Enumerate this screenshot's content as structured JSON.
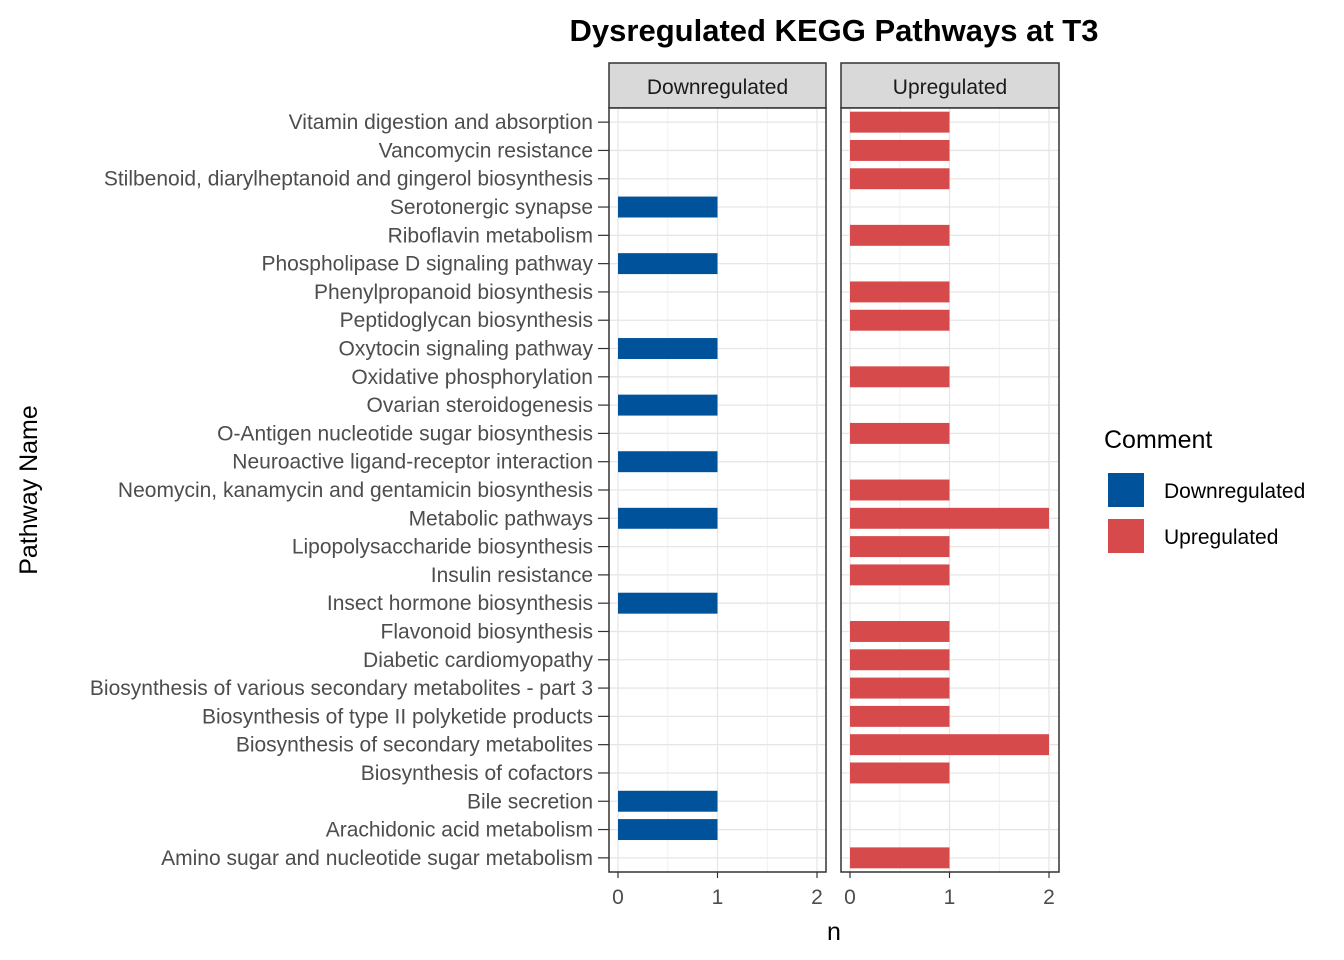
{
  "chart_data": {
    "type": "bar",
    "orientation": "horizontal",
    "title": "Dysregulated KEGG Pathways at T3",
    "xlabel": "n",
    "ylabel": "Pathway Name",
    "xlim": [
      0,
      2
    ],
    "xticks": [
      0,
      1,
      2
    ],
    "grid": true,
    "legend": {
      "title": "Comment",
      "position": "right",
      "entries": [
        "Downregulated",
        "Upregulated"
      ]
    },
    "colors": {
      "Downregulated": "#00539a",
      "Upregulated": "#d64a4b"
    },
    "categories": [
      "Vitamin digestion and absorption",
      "Vancomycin resistance",
      "Stilbenoid, diarylheptanoid and gingerol biosynthesis",
      "Serotonergic synapse",
      "Riboflavin metabolism",
      "Phospholipase D signaling pathway",
      "Phenylpropanoid biosynthesis",
      "Peptidoglycan biosynthesis",
      "Oxytocin signaling pathway",
      "Oxidative phosphorylation",
      "Ovarian steroidogenesis",
      "O-Antigen nucleotide sugar biosynthesis",
      "Neuroactive ligand-receptor interaction",
      "Neomycin, kanamycin and gentamicin biosynthesis",
      "Metabolic pathways",
      "Lipopolysaccharide biosynthesis",
      "Insulin resistance",
      "Insect hormone biosynthesis",
      "Flavonoid biosynthesis",
      "Diabetic cardiomyopathy",
      "Biosynthesis of various secondary metabolites - part 3",
      "Biosynthesis of type II polyketide products",
      "Biosynthesis of secondary metabolites",
      "Biosynthesis of cofactors",
      "Bile secretion",
      "Arachidonic acid metabolism",
      "Amino sugar and nucleotide sugar metabolism"
    ],
    "facets": [
      {
        "name": "Downregulated",
        "values": [
          0,
          0,
          0,
          1,
          0,
          1,
          0,
          0,
          1,
          0,
          1,
          0,
          1,
          0,
          1,
          0,
          0,
          1,
          0,
          0,
          0,
          0,
          0,
          0,
          1,
          1,
          0
        ]
      },
      {
        "name": "Upregulated",
        "values": [
          1,
          1,
          1,
          0,
          1,
          0,
          1,
          1,
          0,
          1,
          0,
          1,
          0,
          1,
          2,
          1,
          1,
          0,
          1,
          1,
          1,
          1,
          2,
          1,
          0,
          0,
          1
        ]
      }
    ]
  }
}
